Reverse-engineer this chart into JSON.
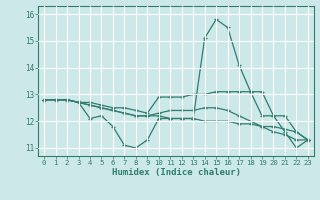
{
  "xlabel": "Humidex (Indice chaleur)",
  "ylabel": "",
  "background_color": "#cde8e8",
  "grid_color": "#ffffff",
  "line_color": "#2e7d6e",
  "xlim": [
    -0.5,
    23.5
  ],
  "ylim": [
    10.7,
    16.3
  ],
  "yticks": [
    11,
    12,
    13,
    14,
    15,
    16
  ],
  "xticks": [
    0,
    1,
    2,
    3,
    4,
    5,
    6,
    7,
    8,
    9,
    10,
    11,
    12,
    13,
    14,
    15,
    16,
    17,
    18,
    19,
    20,
    21,
    22,
    23
  ],
  "lines": [
    {
      "x": [
        0,
        1,
        2,
        3,
        4,
        5,
        6,
        7,
        8,
        9,
        10,
        11,
        12,
        13,
        14,
        15,
        16,
        17,
        18,
        19,
        20,
        21,
        22,
        23
      ],
      "y": [
        12.8,
        12.8,
        12.8,
        12.7,
        12.1,
        12.2,
        11.8,
        11.1,
        11.0,
        11.3,
        12.1,
        12.1,
        12.1,
        12.1,
        15.1,
        15.8,
        15.5,
        14.1,
        13.1,
        12.2,
        12.2,
        11.6,
        11.0,
        11.3
      ]
    },
    {
      "x": [
        0,
        1,
        2,
        3,
        4,
        5,
        6,
        7,
        8,
        9,
        10,
        11,
        12,
        13,
        14,
        15,
        16,
        17,
        18,
        19,
        20,
        21,
        22,
        23
      ],
      "y": [
        12.8,
        12.8,
        12.8,
        12.7,
        12.7,
        12.6,
        12.5,
        12.5,
        12.4,
        12.3,
        12.9,
        12.9,
        12.9,
        13.0,
        13.0,
        13.1,
        13.1,
        13.1,
        13.1,
        13.1,
        12.2,
        12.2,
        11.6,
        11.3
      ]
    },
    {
      "x": [
        0,
        1,
        2,
        3,
        4,
        5,
        6,
        7,
        8,
        9,
        10,
        11,
        12,
        13,
        14,
        15,
        16,
        17,
        18,
        19,
        20,
        21,
        22,
        23
      ],
      "y": [
        12.8,
        12.8,
        12.8,
        12.7,
        12.6,
        12.5,
        12.4,
        12.3,
        12.2,
        12.2,
        12.2,
        12.1,
        12.1,
        12.1,
        12.0,
        12.0,
        12.0,
        11.9,
        11.9,
        11.8,
        11.8,
        11.7,
        11.6,
        11.3
      ]
    },
    {
      "x": [
        0,
        1,
        2,
        3,
        4,
        5,
        6,
        7,
        8,
        9,
        10,
        11,
        12,
        13,
        14,
        15,
        16,
        17,
        18,
        19,
        20,
        21,
        22,
        23
      ],
      "y": [
        12.8,
        12.8,
        12.8,
        12.7,
        12.6,
        12.5,
        12.4,
        12.3,
        12.2,
        12.2,
        12.3,
        12.4,
        12.4,
        12.4,
        12.5,
        12.5,
        12.4,
        12.2,
        12.0,
        11.8,
        11.6,
        11.5,
        11.3,
        11.3
      ]
    }
  ]
}
